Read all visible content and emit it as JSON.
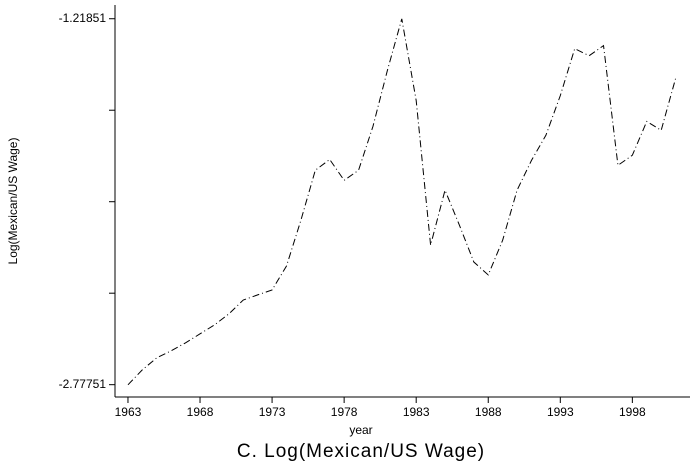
{
  "chart_data": {
    "type": "line",
    "title": "C. Log(Mexican/US Wage)",
    "xlabel": "year",
    "ylabel": "Log(Mexican/US Wage)",
    "x": [
      1963,
      1964,
      1965,
      1966,
      1967,
      1968,
      1969,
      1970,
      1971,
      1972,
      1973,
      1974,
      1975,
      1976,
      1977,
      1978,
      1979,
      1980,
      1981,
      1982,
      1983,
      1984,
      1985,
      1986,
      1987,
      1988,
      1989,
      1990,
      1991,
      1992,
      1993,
      1994,
      1995,
      1996,
      1997,
      1998,
      1999,
      2000,
      2001
    ],
    "series": [
      {
        "name": "Log(Mexican/US Wage)",
        "color": "#000000",
        "values": [
          -2.778,
          -2.714,
          -2.663,
          -2.633,
          -2.599,
          -2.561,
          -2.523,
          -2.476,
          -2.417,
          -2.395,
          -2.374,
          -2.272,
          -2.077,
          -1.864,
          -1.818,
          -1.907,
          -1.864,
          -1.677,
          -1.439,
          -1.219,
          -1.567,
          -2.183,
          -1.949,
          -2.098,
          -2.255,
          -2.31,
          -2.162,
          -1.949,
          -1.822,
          -1.715,
          -1.546,
          -1.346,
          -1.376,
          -1.333,
          -1.843,
          -1.8,
          -1.656,
          -1.694,
          -1.473
        ]
      }
    ],
    "xlim": [
      1962.1,
      2002
    ],
    "xticks": [
      1963,
      1968,
      1973,
      1978,
      1983,
      1988,
      1993,
      1998
    ],
    "ylim": [
      -2.83,
      -1.16
    ],
    "yticks": [
      -1.21851,
      {
        "value": -1.60826,
        "label": null
      },
      {
        "value": -1.99801,
        "label": null
      },
      {
        "value": -2.38776,
        "label": null
      },
      -2.77751
    ],
    "line_style": "dashdot"
  }
}
